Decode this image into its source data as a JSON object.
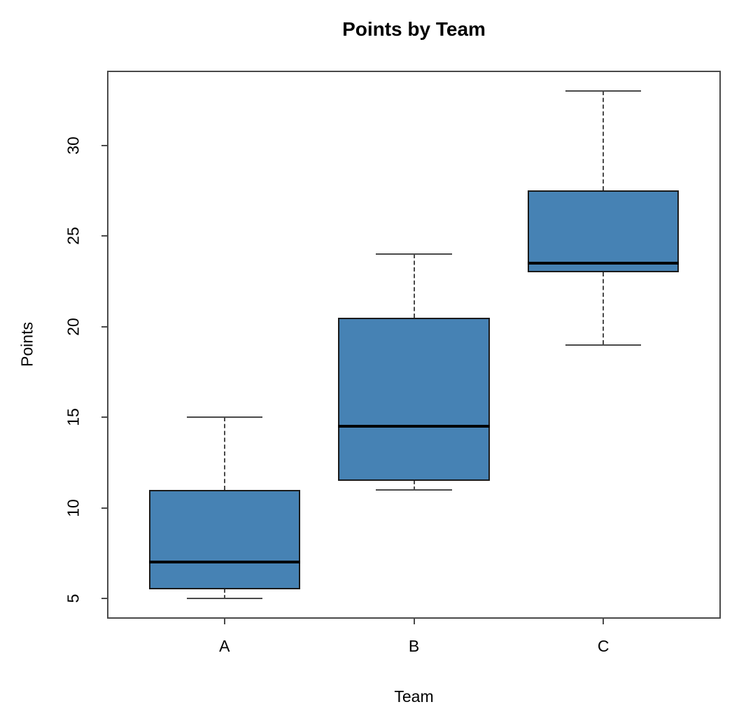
{
  "chart_data": {
    "type": "boxplot",
    "title": "Points by Team",
    "xlabel": "Team",
    "ylabel": "Points",
    "categories": [
      "A",
      "B",
      "C"
    ],
    "series": [
      {
        "name": "A",
        "whisker_low": 5,
        "q1": 5.5,
        "median": 7,
        "q3": 11,
        "whisker_high": 15
      },
      {
        "name": "B",
        "whisker_low": 11,
        "q1": 11.5,
        "median": 14.5,
        "q3": 20.5,
        "whisker_high": 24
      },
      {
        "name": "C",
        "whisker_low": 19,
        "q1": 23,
        "median": 23.5,
        "q3": 27.5,
        "whisker_high": 33
      }
    ],
    "yticks": [
      5,
      10,
      15,
      20,
      25,
      30
    ],
    "ylim": [
      3.88,
      34.12
    ],
    "grid": false,
    "legend": false,
    "colors": {
      "box_fill": "#4682B4",
      "box_border": "#1a1a1a",
      "median": "#000000",
      "whisker": "#4a4a4a",
      "axis": "#4a4a4a",
      "text": "#000000",
      "background": "#ffffff"
    }
  }
}
